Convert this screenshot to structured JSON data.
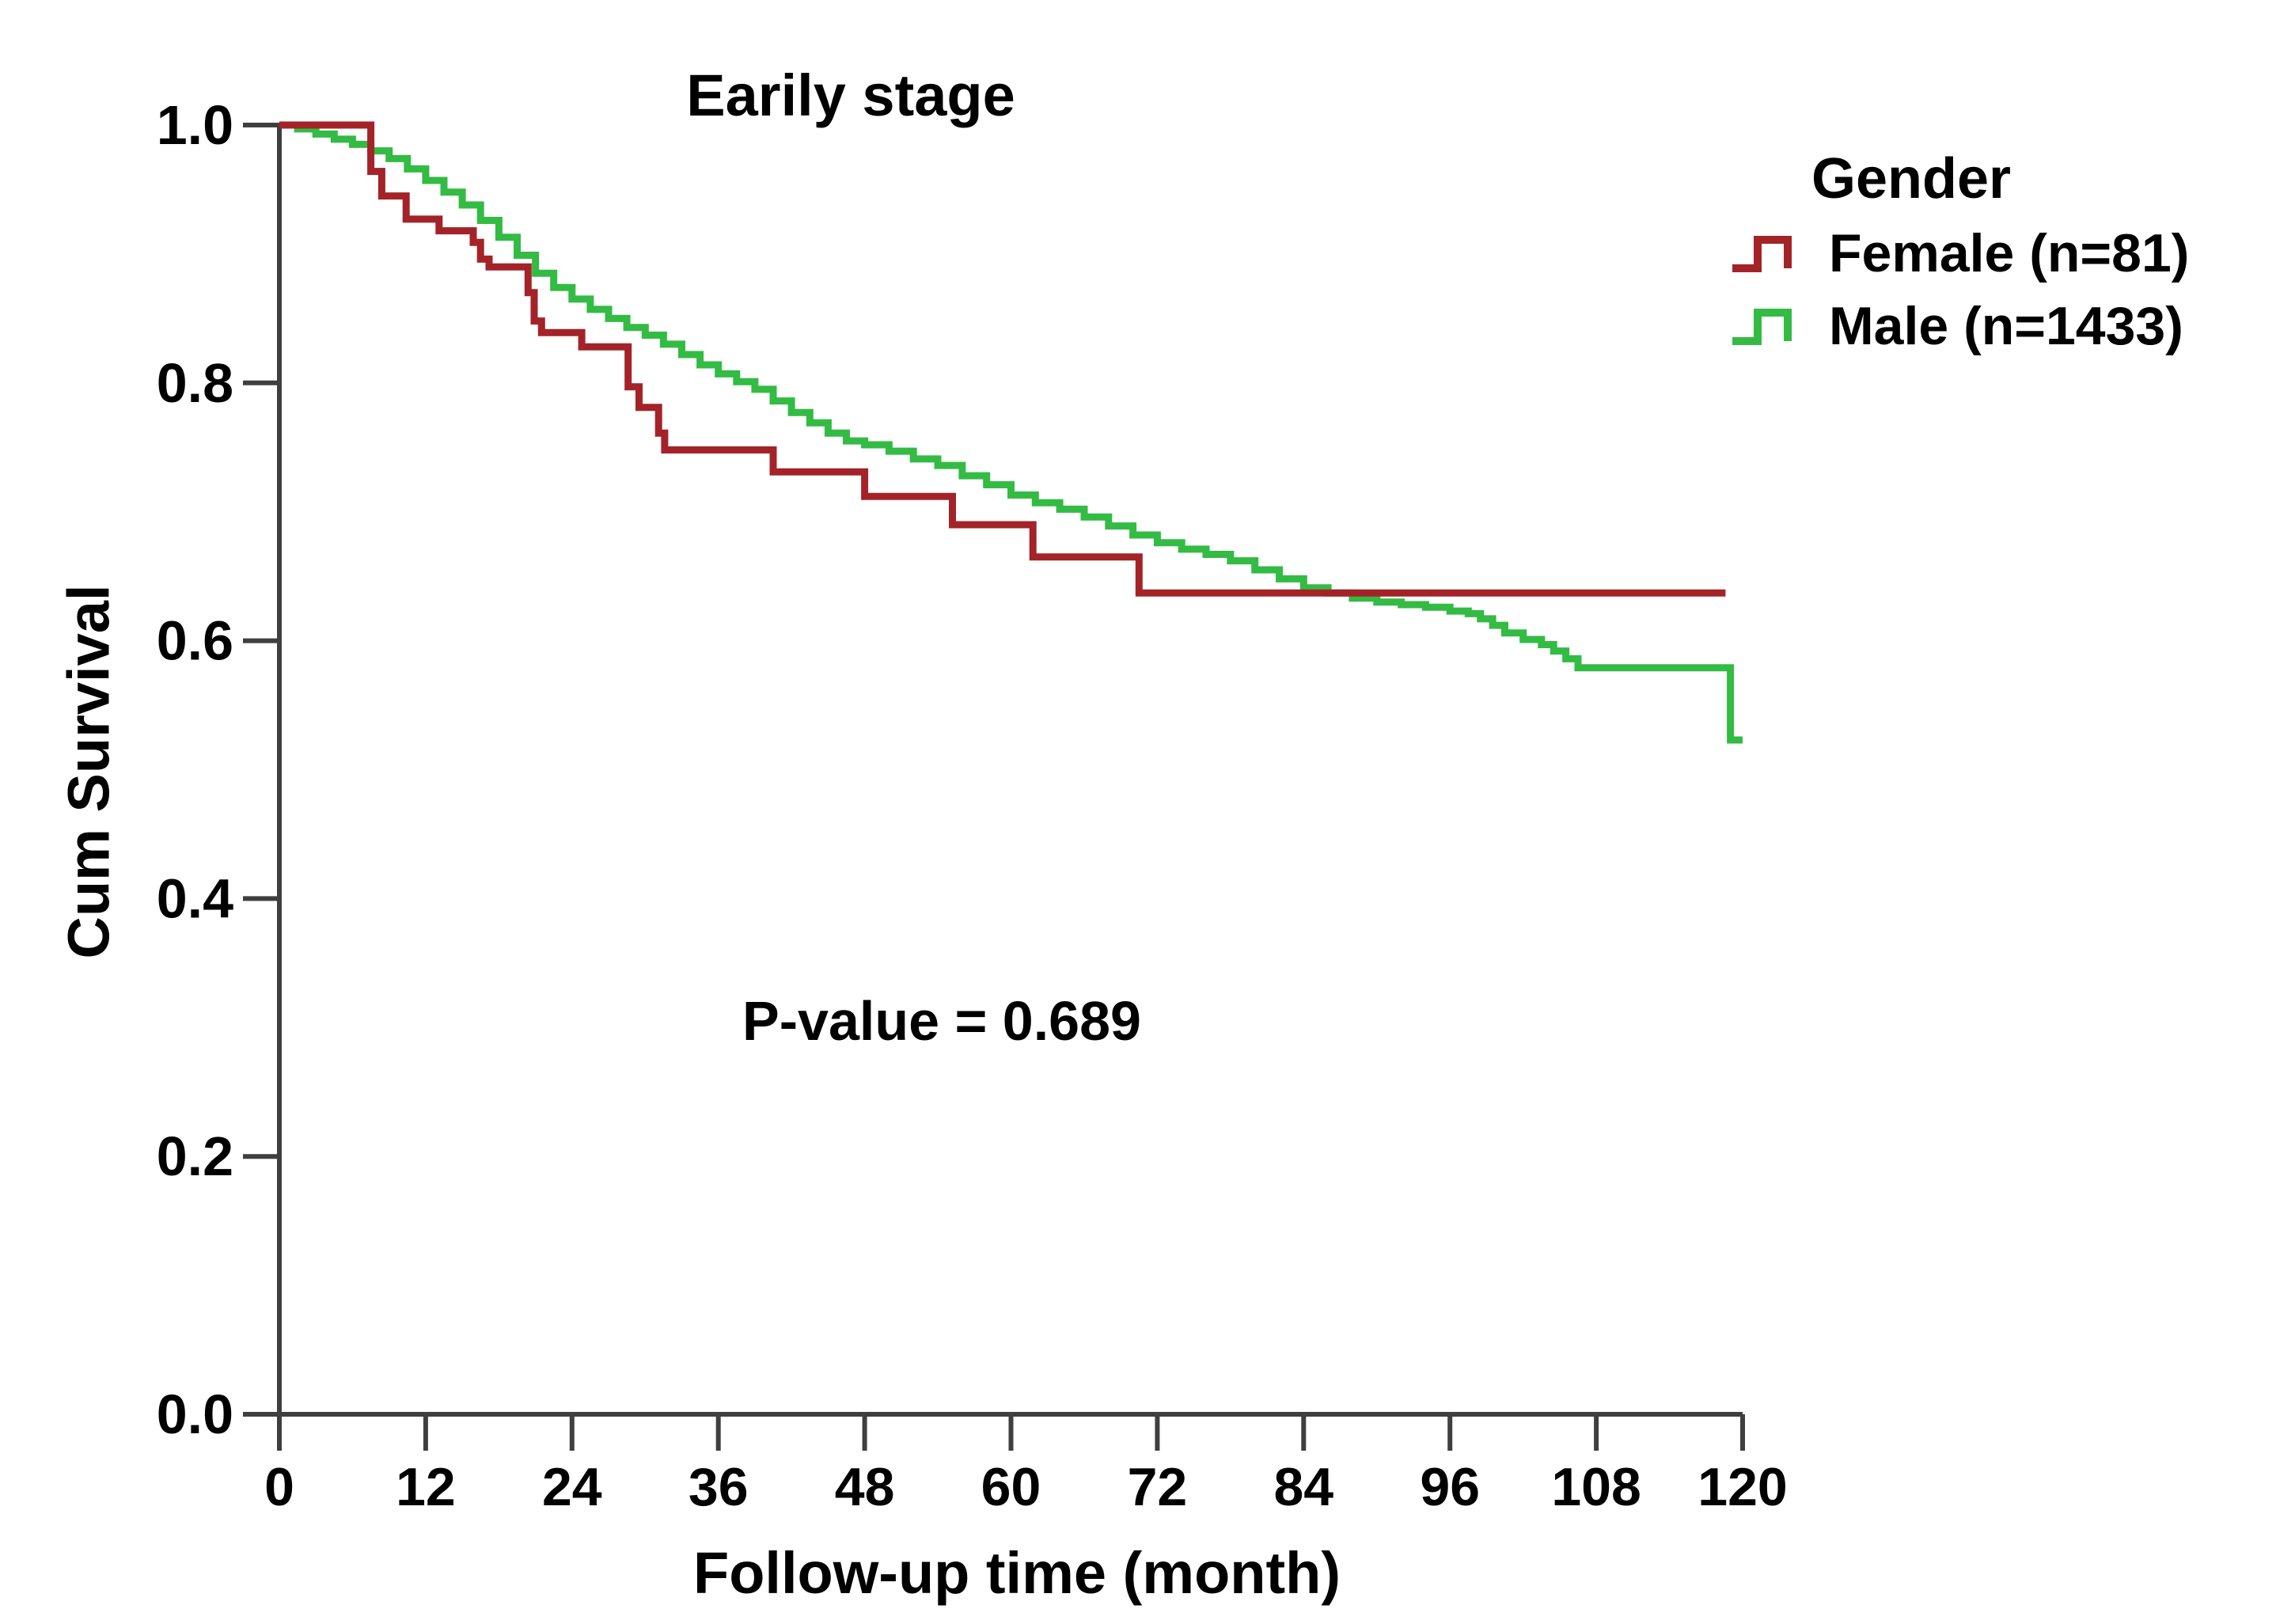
{
  "title": "Earily stage",
  "annotation": "P-value = 0.689",
  "axes": {
    "x": {
      "label": "Follow-up time (month)"
    },
    "y": {
      "label": "Cum Survival"
    }
  },
  "legend": {
    "title": "Gender",
    "items": [
      {
        "label": "Female (n=81)",
        "color": "#a32328"
      },
      {
        "label": "Male (n=1433)",
        "color": "#33bb44"
      }
    ]
  },
  "colors": {
    "axis": "#3f3f3f",
    "text": "#000000",
    "female": "#a32328",
    "male": "#33bb44",
    "background": "#ffffff"
  },
  "chart_data": {
    "type": "line",
    "subtype": "kaplan-meier-step",
    "title": "Earily stage",
    "xlabel": "Follow-up time (month)",
    "ylabel": "Cum Survival",
    "xlim": [
      0,
      120
    ],
    "ylim": [
      0.0,
      1.0
    ],
    "x_ticks": [
      0,
      12,
      24,
      36,
      48,
      60,
      72,
      84,
      96,
      108,
      120
    ],
    "y_ticks": [
      1.0,
      0.8,
      0.6,
      0.4,
      0.2,
      0.0
    ],
    "grid": false,
    "legend_position": "upper right",
    "annotation": "P-value = 0.689",
    "series": [
      {
        "name": "Female (n=81)",
        "n": 81,
        "color": "#a32328",
        "points": [
          [
            0,
            1.0
          ],
          [
            7.5,
            0.964
          ],
          [
            8.4,
            0.945
          ],
          [
            10.4,
            0.927
          ],
          [
            13.1,
            0.918
          ],
          [
            15.9,
            0.909
          ],
          [
            16.5,
            0.896
          ],
          [
            17.2,
            0.89
          ],
          [
            20.4,
            0.87
          ],
          [
            20.9,
            0.848
          ],
          [
            21.5,
            0.839
          ],
          [
            24.8,
            0.828
          ],
          [
            28.6,
            0.797
          ],
          [
            29.5,
            0.781
          ],
          [
            31.1,
            0.761
          ],
          [
            31.6,
            0.748
          ],
          [
            40.5,
            0.731
          ],
          [
            48.0,
            0.712
          ],
          [
            55.2,
            0.69
          ],
          [
            61.8,
            0.665
          ],
          [
            70.5,
            0.637
          ],
          [
            118.6,
            0.637
          ]
        ]
      },
      {
        "name": "Male (n=1433)",
        "n": 1433,
        "color": "#33bb44",
        "points": [
          [
            0,
            1.0
          ],
          [
            1.5,
            0.997
          ],
          [
            3,
            0.993
          ],
          [
            4.5,
            0.989
          ],
          [
            6,
            0.985
          ],
          [
            7.5,
            0.98
          ],
          [
            9,
            0.974
          ],
          [
            10.5,
            0.966
          ],
          [
            12,
            0.957
          ],
          [
            13.5,
            0.948
          ],
          [
            15,
            0.938
          ],
          [
            16.5,
            0.926
          ],
          [
            18,
            0.913
          ],
          [
            19.5,
            0.899
          ],
          [
            21,
            0.885
          ],
          [
            22.5,
            0.874
          ],
          [
            24,
            0.865
          ],
          [
            25.5,
            0.857
          ],
          [
            27,
            0.85
          ],
          [
            28.5,
            0.843
          ],
          [
            30,
            0.837
          ],
          [
            31.5,
            0.83
          ],
          [
            33,
            0.822
          ],
          [
            34.5,
            0.814
          ],
          [
            36,
            0.807
          ],
          [
            37.5,
            0.801
          ],
          [
            39,
            0.795
          ],
          [
            40.5,
            0.786
          ],
          [
            42,
            0.777
          ],
          [
            43.5,
            0.769
          ],
          [
            45,
            0.761
          ],
          [
            46.5,
            0.755
          ],
          [
            48,
            0.752
          ],
          [
            50,
            0.747
          ],
          [
            52,
            0.741
          ],
          [
            54,
            0.736
          ],
          [
            56,
            0.728
          ],
          [
            58,
            0.721
          ],
          [
            60,
            0.713
          ],
          [
            62,
            0.707
          ],
          [
            64,
            0.702
          ],
          [
            66,
            0.696
          ],
          [
            68,
            0.689
          ],
          [
            70,
            0.682
          ],
          [
            72,
            0.676
          ],
          [
            74,
            0.671
          ],
          [
            76,
            0.667
          ],
          [
            78,
            0.662
          ],
          [
            80,
            0.655
          ],
          [
            82,
            0.648
          ],
          [
            84,
            0.641
          ],
          [
            86,
            0.637
          ],
          [
            88,
            0.633
          ],
          [
            90,
            0.63
          ],
          [
            92,
            0.628
          ],
          [
            94,
            0.626
          ],
          [
            96,
            0.623
          ],
          [
            97.5,
            0.621
          ],
          [
            98.5,
            0.617
          ],
          [
            99.5,
            0.612
          ],
          [
            100.5,
            0.606
          ],
          [
            102,
            0.601
          ],
          [
            103.5,
            0.597
          ],
          [
            104.5,
            0.592
          ],
          [
            105.5,
            0.586
          ],
          [
            106.5,
            0.579
          ],
          [
            119,
            0.523
          ],
          [
            120,
            0.523
          ]
        ]
      }
    ]
  }
}
